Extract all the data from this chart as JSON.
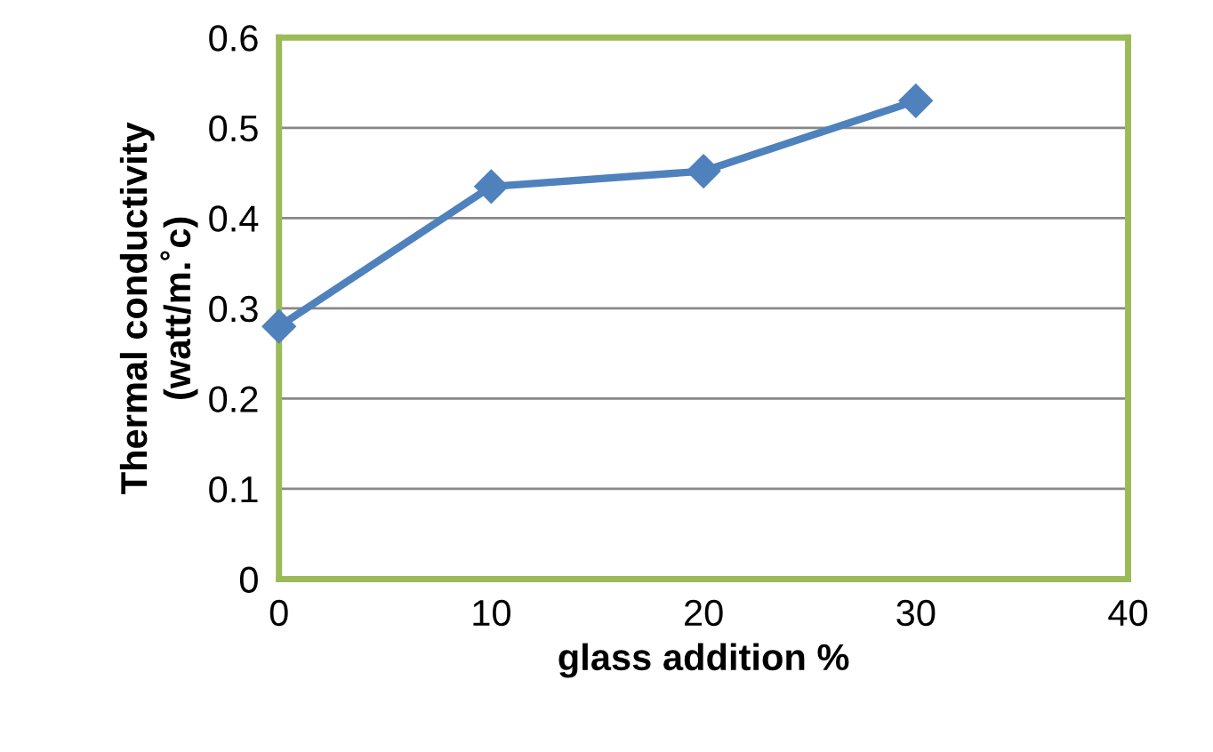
{
  "chart_data": {
    "type": "line",
    "xlabel": "glass addition %",
    "ylabel": "Thermal conductivity\n(watt/m.˚c)",
    "x": [
      0,
      10,
      20,
      30
    ],
    "series": [
      {
        "color": "#4f81bd",
        "values": [
          0.28,
          0.435,
          0.452,
          0.53
        ]
      }
    ],
    "xlim": [
      0,
      40
    ],
    "xticks": [
      0,
      10,
      20,
      30,
      40
    ],
    "ylim": [
      0,
      0.6
    ],
    "yticks": [
      0,
      0.1,
      0.2,
      0.3,
      0.4,
      0.5,
      0.6
    ],
    "grid": "y",
    "marker": "diamond",
    "line_style": "solid",
    "legend": false
  }
}
